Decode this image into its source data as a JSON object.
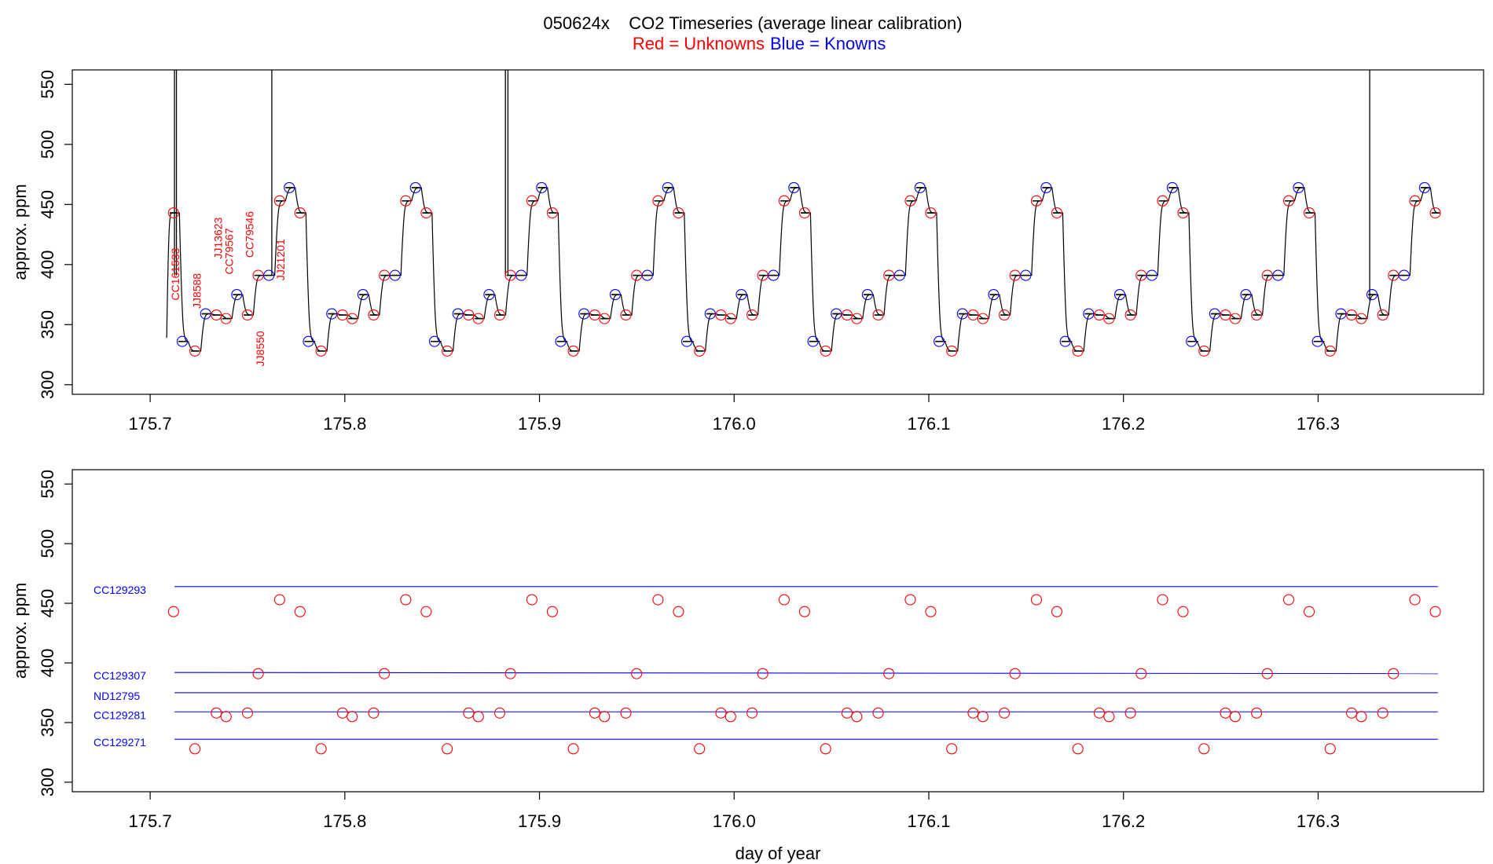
{
  "figure": {
    "title": "050624x    CO2 Timeseries (average linear calibration)",
    "subtitle_red": "Red = Unknowns",
    "subtitle_blue": "Blue = Knowns",
    "colors": {
      "unknown": "#ff0000",
      "known": "#0000ff",
      "trace": "#000000",
      "axes": "#000000"
    }
  },
  "chart_data": [
    {
      "type": "line",
      "panel": "top",
      "description_of_encoding": "step timeseries with red circles (unknowns) and blue circles (knowns)",
      "xlabel": "",
      "ylabel": "approx. ppm",
      "xlim": [
        175.66,
        176.385
      ],
      "ylim": [
        292,
        562
      ],
      "xticks": [
        175.7,
        175.8,
        175.9,
        176.0,
        176.1,
        176.2,
        176.3
      ],
      "xtick_labels": [
        "175.7",
        "175.8",
        "175.9",
        "176.0",
        "176.1",
        "176.2",
        "176.3"
      ],
      "yticks": [
        300,
        350,
        400,
        450,
        500,
        550
      ],
      "ytick_labels": [
        "300",
        "350",
        "400",
        "450",
        "500",
        "550"
      ],
      "cycle": {
        "first_start": 175.712,
        "period": 0.0648,
        "cycles": 10,
        "steps": [
          {
            "dx": 0.0,
            "y": 443,
            "kind": "unknown"
          },
          {
            "dx": 0.0045,
            "y": 336,
            "kind": "known"
          },
          {
            "dx": 0.011,
            "y": 328,
            "kind": "unknown"
          },
          {
            "dx": 0.0165,
            "y": 359,
            "kind": "known"
          },
          {
            "dx": 0.022,
            "y": 358,
            "kind": "unknown"
          },
          {
            "dx": 0.027,
            "y": 355,
            "kind": "unknown"
          },
          {
            "dx": 0.0325,
            "y": 375,
            "kind": "known"
          },
          {
            "dx": 0.038,
            "y": 358,
            "kind": "unknown"
          },
          {
            "dx": 0.0435,
            "y": 391,
            "kind": "unknown"
          },
          {
            "dx": 0.049,
            "y": 391,
            "kind": "known"
          },
          {
            "dx": 0.0545,
            "y": 453,
            "kind": "unknown"
          },
          {
            "dx": 0.0595,
            "y": 464,
            "kind": "known"
          },
          {
            "dx": 0.065,
            "y": 443,
            "kind": "unknown"
          }
        ]
      },
      "spikes_x": [
        175.7125,
        175.7135,
        175.7625,
        175.8825,
        175.8838,
        176.3265
      ],
      "sample_labels": [
        {
          "text": "CC161533",
          "x": 175.7135,
          "y": 392
        },
        {
          "text": "JJ8588",
          "x": 175.7245,
          "y": 378
        },
        {
          "text": "JJ13623",
          "x": 175.7355,
          "y": 422
        },
        {
          "text": "CC79567",
          "x": 175.741,
          "y": 411
        },
        {
          "text": "CC79546",
          "x": 175.7515,
          "y": 425
        },
        {
          "text": "JJ8550",
          "x": 175.757,
          "y": 330
        },
        {
          "text": "JJ21201",
          "x": 175.7675,
          "y": 404
        }
      ]
    },
    {
      "type": "scatter",
      "panel": "bottom",
      "xlabel": "day of year",
      "ylabel": "approx. ppm",
      "xlim": [
        175.66,
        176.385
      ],
      "ylim": [
        292,
        562
      ],
      "xticks": [
        175.7,
        175.8,
        175.9,
        176.0,
        176.1,
        176.2,
        176.3
      ],
      "xtick_labels": [
        "175.7",
        "175.8",
        "175.9",
        "176.0",
        "176.1",
        "176.2",
        "176.3"
      ],
      "yticks": [
        300,
        350,
        400,
        450,
        500,
        550
      ],
      "ytick_labels": [
        "300",
        "350",
        "400",
        "450",
        "500",
        "550"
      ],
      "reference_lines": [
        {
          "name": "CC129293",
          "y_start": 464,
          "y_end": 464
        },
        {
          "name": "CC129307",
          "y_start": 392,
          "y_end": 391
        },
        {
          "name": "ND12795",
          "y_start": 375,
          "y_end": 375
        },
        {
          "name": "CC129281",
          "y_start": 359,
          "y_end": 359
        },
        {
          "name": "CC129271",
          "y_start": 336,
          "y_end": 336
        }
      ],
      "line_x_range": [
        175.7125,
        176.3615
      ],
      "unknown_offsets": [
        {
          "dx": 0.0,
          "y": 443
        },
        {
          "dx": 0.011,
          "y": 328
        },
        {
          "dx": 0.022,
          "y": 358
        },
        {
          "dx": 0.027,
          "y": 355
        },
        {
          "dx": 0.038,
          "y": 358
        },
        {
          "dx": 0.0435,
          "y": 391
        },
        {
          "dx": 0.0545,
          "y": 453
        },
        {
          "dx": 0.065,
          "y": 443
        }
      ]
    }
  ]
}
